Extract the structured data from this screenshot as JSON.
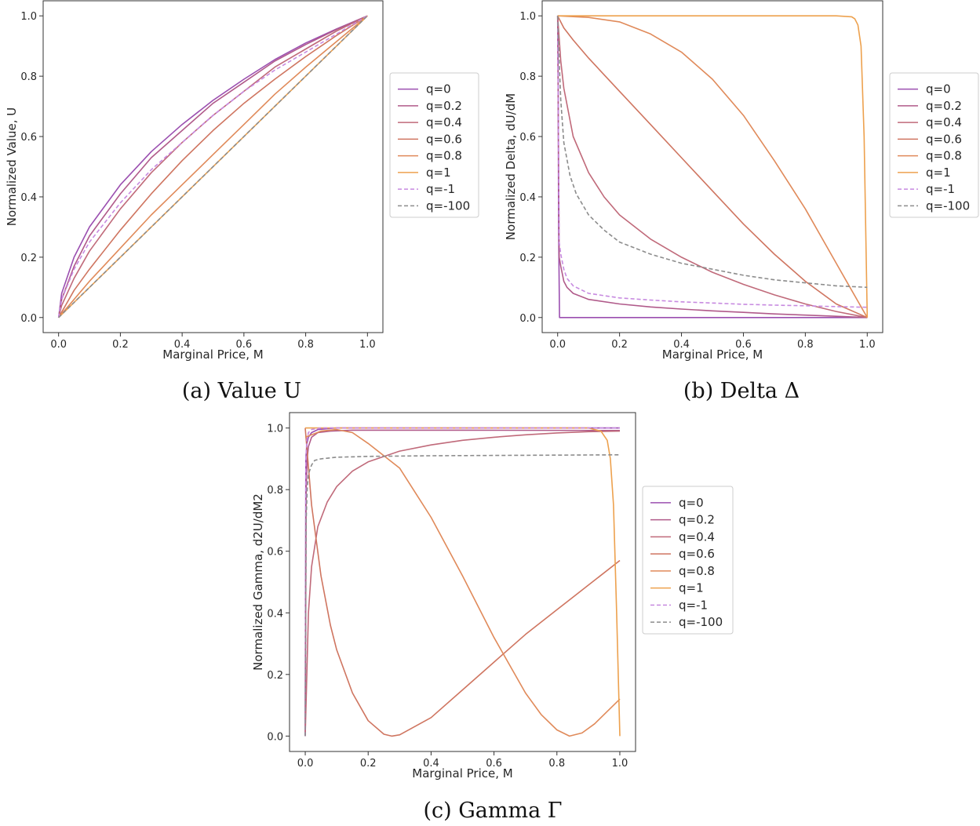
{
  "chart_data": [
    {
      "id": "value",
      "type": "line",
      "caption": "(a) Value U",
      "xlabel": "Marginal Price, M",
      "ylabel": "Normalized Value, U",
      "xlim": [
        -0.05,
        1.05
      ],
      "ylim": [
        -0.05,
        1.05
      ],
      "xticks": [
        "0.0",
        "0.2",
        "0.4",
        "0.6",
        "0.8",
        "1.0"
      ],
      "yticks": [
        "0.0",
        "0.2",
        "0.4",
        "0.6",
        "0.8",
        "1.0"
      ],
      "grid": false,
      "legend_position": "right",
      "series": [
        {
          "name": "q=0",
          "color": "#9b4fb0",
          "dashed": false,
          "x": [
            0,
            0.01,
            0.05,
            0.1,
            0.2,
            0.3,
            0.4,
            0.5,
            0.6,
            0.7,
            0.8,
            0.9,
            1.0
          ],
          "y": [
            0,
            0.08,
            0.2,
            0.3,
            0.44,
            0.55,
            0.64,
            0.72,
            0.79,
            0.855,
            0.91,
            0.957,
            1.0
          ]
        },
        {
          "name": "q=0.2",
          "color": "#b05a8a",
          "dashed": false,
          "x": [
            0,
            0.01,
            0.05,
            0.1,
            0.2,
            0.3,
            0.4,
            0.5,
            0.6,
            0.7,
            0.8,
            0.9,
            1.0
          ],
          "y": [
            0,
            0.06,
            0.17,
            0.27,
            0.41,
            0.53,
            0.62,
            0.71,
            0.78,
            0.85,
            0.905,
            0.955,
            1.0
          ]
        },
        {
          "name": "q=0.4",
          "color": "#c06a7a",
          "dashed": false,
          "x": [
            0,
            0.01,
            0.05,
            0.1,
            0.2,
            0.3,
            0.4,
            0.5,
            0.6,
            0.7,
            0.8,
            0.9,
            1.0
          ],
          "y": [
            0,
            0.04,
            0.13,
            0.22,
            0.36,
            0.48,
            0.58,
            0.67,
            0.75,
            0.83,
            0.89,
            0.95,
            1.0
          ]
        },
        {
          "name": "q=0.6",
          "color": "#cf7560",
          "dashed": false,
          "x": [
            0,
            0.05,
            0.1,
            0.2,
            0.3,
            0.4,
            0.5,
            0.6,
            0.7,
            0.8,
            0.9,
            1.0
          ],
          "y": [
            0,
            0.09,
            0.16,
            0.29,
            0.41,
            0.52,
            0.62,
            0.71,
            0.79,
            0.865,
            0.935,
            1.0
          ]
        },
        {
          "name": "q=0.8",
          "color": "#e08a5a",
          "dashed": false,
          "x": [
            0,
            0.05,
            0.1,
            0.2,
            0.3,
            0.4,
            0.5,
            0.6,
            0.7,
            0.8,
            0.9,
            1.0
          ],
          "y": [
            0,
            0.06,
            0.12,
            0.23,
            0.34,
            0.44,
            0.54,
            0.64,
            0.74,
            0.83,
            0.915,
            1.0
          ]
        },
        {
          "name": "q=1",
          "color": "#eda14e",
          "dashed": false,
          "x": [
            0,
            1.0
          ],
          "y": [
            0,
            1.0
          ]
        },
        {
          "name": "q=-1",
          "color": "#c78ae0",
          "dashed": true,
          "x": [
            0,
            0.01,
            0.05,
            0.1,
            0.2,
            0.3,
            0.4,
            0.5,
            0.6,
            0.7,
            0.8,
            0.9,
            1.0
          ],
          "y": [
            0,
            0.06,
            0.16,
            0.25,
            0.38,
            0.49,
            0.58,
            0.67,
            0.75,
            0.82,
            0.88,
            0.94,
            1.0
          ]
        },
        {
          "name": "q=-100",
          "color": "#8c8c8c",
          "dashed": true,
          "x": [
            0,
            1.0
          ],
          "y": [
            0,
            1.0
          ]
        }
      ]
    },
    {
      "id": "delta",
      "type": "line",
      "caption": "(b) Delta Δ",
      "xlabel": "Marginal Price, M",
      "ylabel": "Normalized Delta, dU/dM",
      "xlim": [
        -0.05,
        1.05
      ],
      "ylim": [
        -0.05,
        1.05
      ],
      "xticks": [
        "0.0",
        "0.2",
        "0.4",
        "0.6",
        "0.8",
        "1.0"
      ],
      "yticks": [
        "0.0",
        "0.2",
        "0.4",
        "0.6",
        "0.8",
        "1.0"
      ],
      "grid": false,
      "legend_position": "right",
      "series": [
        {
          "name": "q=0",
          "color": "#9b4fb0",
          "dashed": false,
          "x": [
            0,
            0.001,
            0.003,
            0.006,
            1.0
          ],
          "y": [
            1.0,
            1.0,
            0.3,
            0.0,
            0.0
          ]
        },
        {
          "name": "q=0.2",
          "color": "#b05a8a",
          "dashed": false,
          "x": [
            0,
            0.005,
            0.01,
            0.02,
            0.03,
            0.05,
            0.1,
            0.2,
            0.3,
            0.4,
            0.5,
            0.6,
            0.7,
            0.8,
            0.9,
            1.0
          ],
          "y": [
            1.0,
            0.2,
            0.17,
            0.12,
            0.1,
            0.08,
            0.06,
            0.045,
            0.035,
            0.028,
            0.022,
            0.017,
            0.012,
            0.008,
            0.004,
            0.0
          ]
        },
        {
          "name": "q=0.4",
          "color": "#c06a7a",
          "dashed": false,
          "x": [
            0,
            0.01,
            0.02,
            0.05,
            0.1,
            0.15,
            0.2,
            0.3,
            0.4,
            0.5,
            0.6,
            0.7,
            0.8,
            0.9,
            1.0
          ],
          "y": [
            1.0,
            0.85,
            0.76,
            0.6,
            0.48,
            0.4,
            0.34,
            0.26,
            0.2,
            0.15,
            0.11,
            0.075,
            0.045,
            0.02,
            0.0
          ]
        },
        {
          "name": "q=0.6",
          "color": "#cf7560",
          "dashed": false,
          "x": [
            0,
            0.02,
            0.05,
            0.1,
            0.2,
            0.3,
            0.4,
            0.5,
            0.6,
            0.7,
            0.8,
            0.9,
            1.0
          ],
          "y": [
            1.0,
            0.96,
            0.92,
            0.86,
            0.75,
            0.64,
            0.53,
            0.42,
            0.31,
            0.21,
            0.12,
            0.045,
            0.0
          ]
        },
        {
          "name": "q=0.8",
          "color": "#e08a5a",
          "dashed": false,
          "x": [
            0,
            0.1,
            0.2,
            0.3,
            0.4,
            0.5,
            0.6,
            0.7,
            0.8,
            0.9,
            0.95,
            1.0
          ],
          "y": [
            1.0,
            0.995,
            0.98,
            0.94,
            0.88,
            0.79,
            0.67,
            0.52,
            0.36,
            0.18,
            0.09,
            0.0
          ]
        },
        {
          "name": "q=1",
          "color": "#eda14e",
          "dashed": false,
          "x": [
            0,
            0.9,
            0.95,
            0.96,
            0.97,
            0.98,
            0.99,
            1.0
          ],
          "y": [
            1.0,
            1.0,
            0.997,
            0.99,
            0.97,
            0.9,
            0.6,
            0.0
          ]
        },
        {
          "name": "q=-1",
          "color": "#c78ae0",
          "dashed": true,
          "x": [
            0,
            0.005,
            0.01,
            0.02,
            0.03,
            0.05,
            0.1,
            0.2,
            0.3,
            0.4,
            0.5,
            0.6,
            0.7,
            0.8,
            0.9,
            1.0
          ],
          "y": [
            1.0,
            0.25,
            0.21,
            0.16,
            0.13,
            0.105,
            0.08,
            0.065,
            0.058,
            0.052,
            0.048,
            0.044,
            0.041,
            0.039,
            0.036,
            0.034
          ]
        },
        {
          "name": "q=-100",
          "color": "#8c8c8c",
          "dashed": true,
          "x": [
            0,
            0.005,
            0.01,
            0.02,
            0.04,
            0.06,
            0.1,
            0.15,
            0.2,
            0.3,
            0.4,
            0.5,
            0.6,
            0.7,
            0.8,
            0.9,
            1.0
          ],
          "y": [
            1.0,
            0.85,
            0.72,
            0.58,
            0.47,
            0.41,
            0.34,
            0.29,
            0.25,
            0.21,
            0.18,
            0.16,
            0.14,
            0.125,
            0.115,
            0.105,
            0.1
          ]
        }
      ]
    },
    {
      "id": "gamma",
      "type": "line",
      "caption": "(c) Gamma Γ",
      "xlabel": "Marginal Price, M",
      "ylabel": "Normalized Gamma, d2U/dM2",
      "xlim": [
        -0.05,
        1.05
      ],
      "ylim": [
        -0.05,
        1.05
      ],
      "xticks": [
        "0.0",
        "0.2",
        "0.4",
        "0.6",
        "0.8",
        "1.0"
      ],
      "yticks": [
        "0.0",
        "0.2",
        "0.4",
        "0.6",
        "0.8",
        "1.0"
      ],
      "grid": false,
      "legend_position": "right",
      "series": [
        {
          "name": "q=0",
          "color": "#9b4fb0",
          "dashed": false,
          "x": [
            0,
            0.002,
            0.005,
            0.01,
            0.02,
            0.04,
            0.1,
            1.0
          ],
          "y": [
            0.0,
            0.9,
            0.95,
            0.97,
            0.985,
            0.995,
            1.0,
            1.0
          ]
        },
        {
          "name": "q=0.2",
          "color": "#b05a8a",
          "dashed": false,
          "x": [
            0,
            0.003,
            0.006,
            0.01,
            0.02,
            0.04,
            0.08,
            0.15,
            0.3,
            0.5,
            1.0
          ],
          "y": [
            0.0,
            0.8,
            0.9,
            0.94,
            0.97,
            0.985,
            0.99,
            0.993,
            0.993,
            0.993,
            0.992
          ]
        },
        {
          "name": "q=0.4",
          "color": "#c06a7a",
          "dashed": false,
          "x": [
            0,
            0.01,
            0.02,
            0.04,
            0.07,
            0.1,
            0.15,
            0.2,
            0.3,
            0.4,
            0.5,
            0.6,
            0.7,
            0.8,
            0.9,
            1.0
          ],
          "y": [
            0.0,
            0.4,
            0.55,
            0.68,
            0.76,
            0.81,
            0.86,
            0.89,
            0.925,
            0.945,
            0.96,
            0.97,
            0.978,
            0.984,
            0.988,
            0.99
          ]
        },
        {
          "name": "q=0.6",
          "color": "#cf7560",
          "dashed": false,
          "x": [
            0,
            0.02,
            0.05,
            0.08,
            0.1,
            0.15,
            0.2,
            0.25,
            0.275,
            0.3,
            0.4,
            0.5,
            0.6,
            0.7,
            0.8,
            0.9,
            1.0
          ],
          "y": [
            1.0,
            0.75,
            0.52,
            0.36,
            0.28,
            0.14,
            0.05,
            0.006,
            0.0,
            0.004,
            0.06,
            0.15,
            0.24,
            0.33,
            0.41,
            0.49,
            0.57
          ]
        },
        {
          "name": "q=0.8",
          "color": "#e08a5a",
          "dashed": false,
          "x": [
            0,
            0.05,
            0.1,
            0.15,
            0.2,
            0.3,
            0.4,
            0.5,
            0.6,
            0.7,
            0.75,
            0.8,
            0.84,
            0.88,
            0.92,
            0.96,
            1.0
          ],
          "y": [
            0.97,
            0.99,
            0.995,
            0.985,
            0.95,
            0.87,
            0.71,
            0.52,
            0.32,
            0.14,
            0.07,
            0.02,
            0.0,
            0.01,
            0.04,
            0.08,
            0.12
          ]
        },
        {
          "name": "q=1",
          "color": "#eda14e",
          "dashed": false,
          "x": [
            0,
            0.9,
            0.94,
            0.96,
            0.97,
            0.98,
            0.99,
            1.0
          ],
          "y": [
            1.0,
            1.0,
            0.99,
            0.96,
            0.9,
            0.75,
            0.4,
            0.0
          ]
        },
        {
          "name": "q=-1",
          "color": "#c78ae0",
          "dashed": true,
          "x": [
            0,
            0.002,
            0.005,
            0.01,
            0.02,
            0.05,
            1.0
          ],
          "y": [
            0.0,
            0.9,
            0.96,
            0.985,
            0.995,
            1.0,
            1.0
          ]
        },
        {
          "name": "q=-100",
          "color": "#8c8c8c",
          "dashed": true,
          "x": [
            0,
            0.003,
            0.006,
            0.01,
            0.02,
            0.03,
            0.05,
            0.1,
            0.2,
            0.4,
            0.6,
            0.8,
            1.0
          ],
          "y": [
            0.0,
            0.7,
            0.8,
            0.85,
            0.88,
            0.895,
            0.9,
            0.905,
            0.908,
            0.91,
            0.911,
            0.912,
            0.913
          ]
        }
      ]
    }
  ]
}
